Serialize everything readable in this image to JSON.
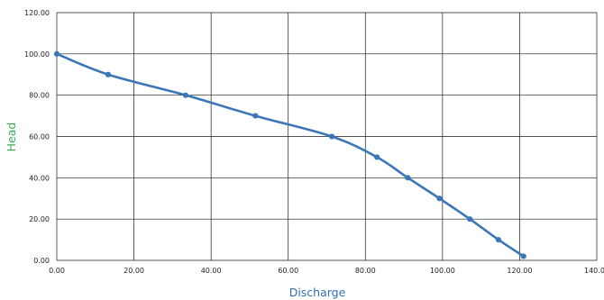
{
  "chart_data": {
    "type": "line",
    "xlabel": "Discharge",
    "ylabel": "Head",
    "xlim": [
      0,
      140
    ],
    "ylim": [
      0,
      120
    ],
    "x_ticks": [
      "0.00",
      "20.00",
      "40.00",
      "60.00",
      "80.00",
      "100.00",
      "120.00",
      "140.00"
    ],
    "y_ticks": [
      "0.00",
      "20.00",
      "40.00",
      "60.00",
      "80.00",
      "100.00",
      "120.00"
    ],
    "grid": true,
    "legend": "none",
    "series": [
      {
        "x": [
          0,
          13.3,
          33.4,
          51.5,
          71.3,
          83,
          91,
          99.2,
          107.1,
          114.5,
          121
        ],
        "y": [
          100,
          90,
          80,
          70,
          60,
          50,
          40,
          30,
          20,
          10,
          2
        ]
      }
    ],
    "colors": {
      "line": "#3b76b8",
      "xlabel": "#2f6fb3",
      "ylabel": "#3aaa4a",
      "grid": "#1a1a1a"
    }
  }
}
